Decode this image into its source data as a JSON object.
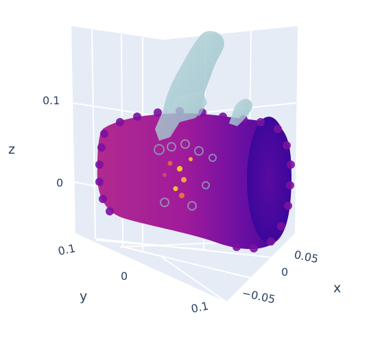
{
  "chart_data": {
    "type": "scatter3d",
    "title": "",
    "axes": {
      "x": {
        "title": "x",
        "tick_labels": [
          "0.05",
          "0",
          "−0.05"
        ]
      },
      "y": {
        "title": "y",
        "tick_labels": [
          "0.1",
          "0",
          "0.1"
        ]
      },
      "z": {
        "title": "z",
        "tick_labels": [
          "0.1",
          "0"
        ]
      }
    },
    "traces": [
      {
        "kind": "point-cloud",
        "shape": "cylinder",
        "colorscale": "plasma",
        "color_range": [
          "#2f0596",
          "#e94f3d",
          "#fdca26"
        ]
      },
      {
        "kind": "mesh",
        "shape": "hand",
        "color": "#a9cdd3",
        "opacity": 0.75
      }
    ],
    "grid": true,
    "background": "#e5ecf6"
  }
}
